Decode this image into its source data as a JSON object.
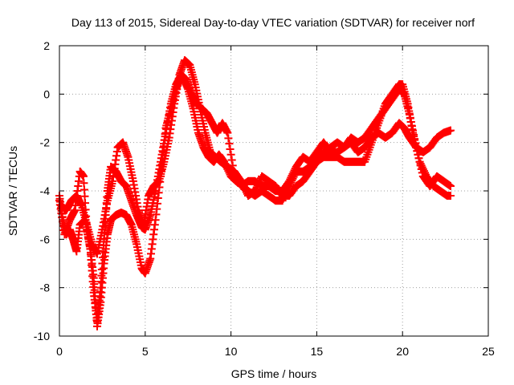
{
  "chart_data": {
    "type": "scatter",
    "title": "Day 113 of 2015, Sidereal Day-to-day VTEC variation (SDTVAR) for receiver norf",
    "xlabel": "GPS time / hours",
    "ylabel": "SDTVAR / TECUs",
    "xlim": [
      0,
      25
    ],
    "ylim": [
      -10,
      2
    ],
    "xticks": [
      0,
      5,
      10,
      15,
      20,
      25
    ],
    "yticks": [
      -10,
      -8,
      -6,
      -4,
      -2,
      0,
      2
    ],
    "grid": true,
    "marker": "+",
    "series": [
      {
        "name": "trace-a",
        "color": "#ff0000",
        "points": [
          [
            0.0,
            -4.2
          ],
          [
            0.2,
            -5.2
          ],
          [
            0.4,
            -5.8
          ],
          [
            0.6,
            -5.6
          ],
          [
            0.8,
            -6.0
          ],
          [
            1.0,
            -6.5
          ],
          [
            1.2,
            -5.4
          ],
          [
            1.5,
            -5.2
          ],
          [
            1.8,
            -6.4
          ],
          [
            2.0,
            -7.6
          ],
          [
            2.2,
            -9.6
          ],
          [
            2.4,
            -8.6
          ],
          [
            2.6,
            -7.0
          ],
          [
            2.8,
            -5.8
          ],
          [
            3.0,
            -5.2
          ],
          [
            3.3,
            -5.0
          ],
          [
            3.6,
            -4.9
          ],
          [
            3.9,
            -5.0
          ],
          [
            4.2,
            -5.4
          ],
          [
            4.5,
            -6.2
          ],
          [
            4.8,
            -7.2
          ],
          [
            5.0,
            -7.4
          ],
          [
            5.3,
            -6.8
          ],
          [
            5.6,
            -5.2
          ],
          [
            5.9,
            -3.4
          ],
          [
            6.2,
            -1.4
          ],
          [
            6.5,
            -0.6
          ],
          [
            6.8,
            0.2
          ],
          [
            7.0,
            0.6
          ],
          [
            7.2,
            0.7
          ],
          [
            7.5,
            0.2
          ],
          [
            7.8,
            -0.6
          ],
          [
            8.1,
            -1.6
          ],
          [
            8.4,
            -2.2
          ],
          [
            8.7,
            -2.6
          ],
          [
            9.0,
            -2.8
          ],
          [
            9.3,
            -2.5
          ],
          [
            9.6,
            -2.8
          ],
          [
            10.0,
            -3.4
          ],
          [
            10.3,
            -3.6
          ],
          [
            10.7,
            -3.8
          ],
          [
            11.0,
            -4.0
          ],
          [
            11.4,
            -4.2
          ],
          [
            11.8,
            -4.0
          ],
          [
            12.2,
            -4.2
          ],
          [
            12.6,
            -4.4
          ],
          [
            13.0,
            -4.4
          ],
          [
            13.4,
            -3.8
          ],
          [
            13.8,
            -3.2
          ],
          [
            14.2,
            -3.2
          ],
          [
            14.6,
            -3.0
          ],
          [
            15.0,
            -2.8
          ],
          [
            15.4,
            -2.6
          ],
          [
            15.8,
            -2.6
          ],
          [
            16.2,
            -2.6
          ],
          [
            16.6,
            -2.8
          ],
          [
            17.0,
            -2.8
          ],
          [
            17.4,
            -2.8
          ],
          [
            17.8,
            -2.8
          ],
          [
            18.2,
            -2.0
          ],
          [
            18.6,
            -1.2
          ],
          [
            19.0,
            -0.4
          ],
          [
            19.4,
            0.0
          ],
          [
            19.8,
            0.4
          ],
          [
            20.0,
            0.4
          ],
          [
            20.3,
            -0.4
          ],
          [
            20.6,
            -1.6
          ],
          [
            21.0,
            -2.8
          ],
          [
            21.4,
            -3.4
          ],
          [
            21.8,
            -3.8
          ],
          [
            22.2,
            -4.0
          ],
          [
            22.6,
            -4.2
          ],
          [
            22.8,
            -4.2
          ]
        ]
      },
      {
        "name": "trace-b",
        "color": "#ff0000",
        "points": [
          [
            0.0,
            -4.4
          ],
          [
            0.3,
            -5.8
          ],
          [
            0.6,
            -5.2
          ],
          [
            0.9,
            -4.8
          ],
          [
            1.2,
            -3.2
          ],
          [
            1.4,
            -3.4
          ],
          [
            1.6,
            -5.6
          ],
          [
            1.8,
            -6.4
          ],
          [
            2.0,
            -8.2
          ],
          [
            2.2,
            -9.4
          ],
          [
            2.4,
            -8.0
          ],
          [
            2.6,
            -6.0
          ],
          [
            2.8,
            -4.0
          ],
          [
            3.0,
            -3.0
          ],
          [
            3.3,
            -3.2
          ],
          [
            3.6,
            -3.6
          ],
          [
            3.9,
            -3.8
          ],
          [
            4.2,
            -4.4
          ],
          [
            4.5,
            -5.0
          ],
          [
            4.8,
            -5.5
          ],
          [
            5.0,
            -5.6
          ],
          [
            5.3,
            -5.0
          ],
          [
            5.6,
            -4.0
          ],
          [
            5.9,
            -2.8
          ],
          [
            6.2,
            -1.6
          ],
          [
            6.5,
            -0.4
          ],
          [
            6.8,
            0.4
          ],
          [
            7.1,
            0.8
          ],
          [
            7.4,
            0.6
          ],
          [
            7.7,
            0.0
          ],
          [
            8.0,
            -0.4
          ],
          [
            8.3,
            -0.6
          ],
          [
            8.6,
            -0.8
          ],
          [
            8.9,
            -1.2
          ],
          [
            9.2,
            -1.6
          ],
          [
            9.5,
            -1.2
          ],
          [
            9.8,
            -1.6
          ],
          [
            10.2,
            -3.4
          ],
          [
            10.6,
            -3.8
          ],
          [
            11.0,
            -3.6
          ],
          [
            11.4,
            -3.6
          ],
          [
            11.8,
            -3.8
          ],
          [
            12.2,
            -3.8
          ],
          [
            12.6,
            -4.0
          ],
          [
            13.0,
            -4.0
          ],
          [
            13.4,
            -3.6
          ],
          [
            13.8,
            -3.0
          ],
          [
            14.2,
            -2.6
          ],
          [
            14.6,
            -2.8
          ],
          [
            15.0,
            -2.4
          ],
          [
            15.4,
            -2.0
          ],
          [
            15.8,
            -2.4
          ],
          [
            16.2,
            -2.4
          ],
          [
            16.6,
            -2.2
          ],
          [
            17.0,
            -2.0
          ],
          [
            17.4,
            -2.4
          ],
          [
            17.8,
            -2.2
          ],
          [
            18.2,
            -1.8
          ],
          [
            18.6,
            -1.6
          ],
          [
            19.0,
            -1.8
          ],
          [
            19.4,
            -1.6
          ],
          [
            19.8,
            -1.2
          ],
          [
            20.1,
            -1.4
          ],
          [
            20.4,
            -1.8
          ],
          [
            20.8,
            -2.2
          ],
          [
            21.2,
            -2.4
          ],
          [
            21.6,
            -2.2
          ],
          [
            22.0,
            -1.8
          ],
          [
            22.4,
            -1.6
          ],
          [
            22.8,
            -1.5
          ]
        ]
      },
      {
        "name": "trace-c",
        "color": "#ff0000",
        "points": [
          [
            0.1,
            -4.6
          ],
          [
            0.4,
            -4.8
          ],
          [
            0.7,
            -4.4
          ],
          [
            1.0,
            -4.2
          ],
          [
            1.3,
            -4.6
          ],
          [
            1.6,
            -5.4
          ],
          [
            1.9,
            -6.2
          ],
          [
            2.2,
            -6.6
          ],
          [
            2.5,
            -5.6
          ],
          [
            2.8,
            -4.4
          ],
          [
            3.1,
            -3.6
          ],
          [
            3.4,
            -2.2
          ],
          [
            3.7,
            -2.0
          ],
          [
            4.0,
            -2.6
          ],
          [
            4.3,
            -3.6
          ],
          [
            4.6,
            -4.8
          ],
          [
            4.9,
            -5.4
          ],
          [
            5.2,
            -4.2
          ],
          [
            5.5,
            -3.8
          ],
          [
            5.8,
            -3.6
          ],
          [
            6.1,
            -2.8
          ],
          [
            6.4,
            -1.8
          ],
          [
            6.7,
            -0.4
          ],
          [
            7.0,
            0.8
          ],
          [
            7.3,
            1.4
          ],
          [
            7.6,
            1.2
          ],
          [
            7.9,
            0.4
          ],
          [
            8.2,
            -0.6
          ],
          [
            8.5,
            -1.6
          ],
          [
            8.8,
            -2.4
          ],
          [
            9.1,
            -2.6
          ],
          [
            9.4,
            -2.8
          ],
          [
            9.8,
            -3.0
          ],
          [
            10.2,
            -3.2
          ],
          [
            10.6,
            -3.6
          ],
          [
            11.0,
            -4.2
          ],
          [
            11.4,
            -4.0
          ],
          [
            11.8,
            -3.4
          ],
          [
            12.2,
            -3.6
          ],
          [
            12.6,
            -3.8
          ],
          [
            13.0,
            -4.2
          ],
          [
            13.4,
            -4.2
          ],
          [
            13.8,
            -3.8
          ],
          [
            14.2,
            -3.6
          ],
          [
            14.6,
            -3.2
          ],
          [
            15.0,
            -2.8
          ],
          [
            15.4,
            -2.4
          ],
          [
            15.8,
            -2.2
          ],
          [
            16.2,
            -2.0
          ],
          [
            16.6,
            -2.2
          ],
          [
            17.0,
            -1.8
          ],
          [
            17.4,
            -2.0
          ],
          [
            17.8,
            -1.8
          ],
          [
            18.2,
            -1.4
          ],
          [
            18.6,
            -1.0
          ],
          [
            19.0,
            -0.6
          ],
          [
            19.4,
            -0.2
          ],
          [
            19.8,
            0.2
          ],
          [
            20.1,
            0.0
          ],
          [
            20.4,
            -0.8
          ],
          [
            20.8,
            -2.2
          ],
          [
            21.2,
            -3.4
          ],
          [
            21.6,
            -3.8
          ],
          [
            22.0,
            -3.4
          ],
          [
            22.4,
            -3.6
          ],
          [
            22.8,
            -3.8
          ]
        ]
      }
    ]
  }
}
